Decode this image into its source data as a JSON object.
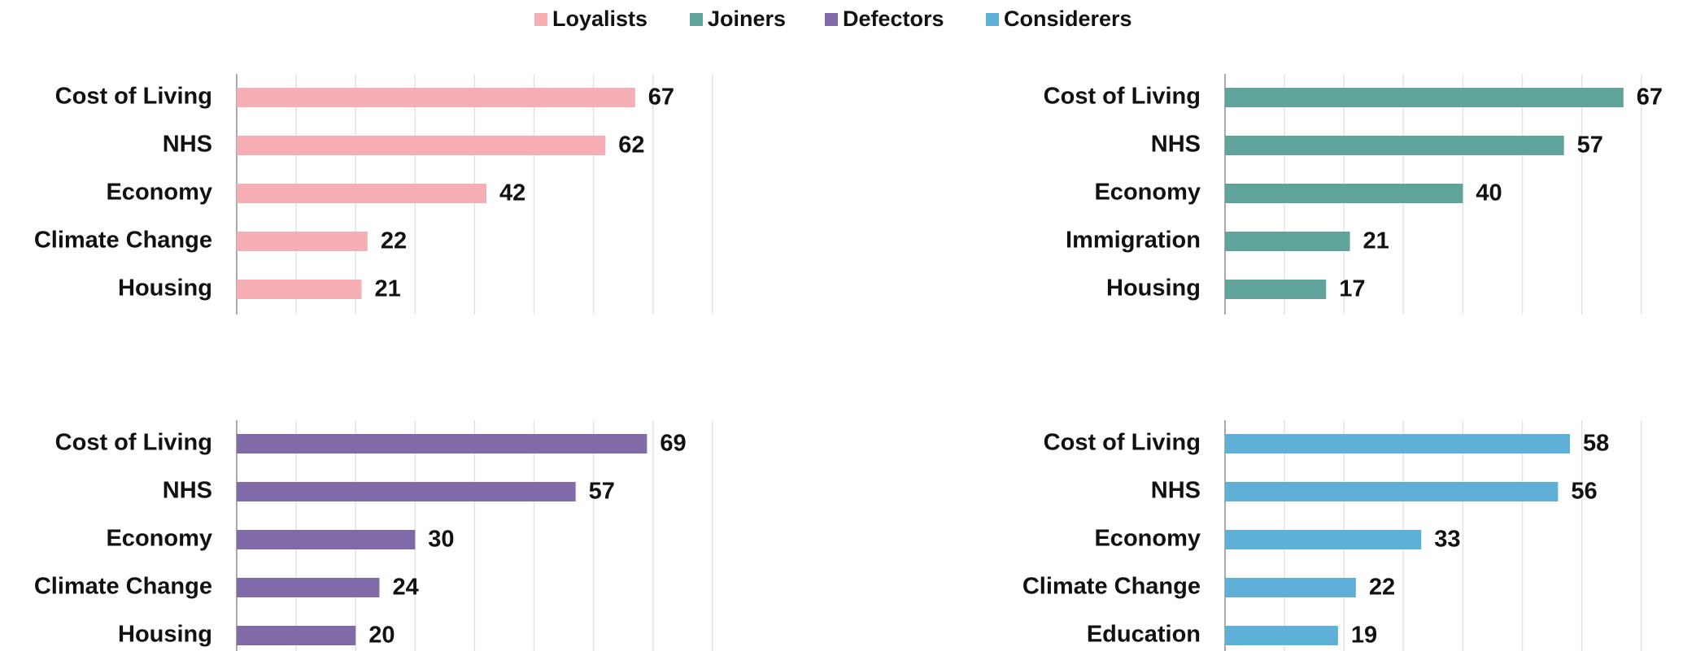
{
  "chart_data": [
    {
      "type": "bar",
      "orientation": "horizontal",
      "categories": [
        "Cost of Living",
        "NHS",
        "Economy",
        "Climate Change",
        "Housing"
      ],
      "series": [
        {
          "name": "Loyalists",
          "color": "#f4aeb4",
          "values": [
            67,
            62,
            42,
            22,
            21
          ]
        }
      ],
      "xlim": [
        0,
        80
      ],
      "xticks": [
        0,
        10,
        20,
        30,
        40,
        50,
        60,
        70,
        80
      ],
      "grid": true
    },
    {
      "type": "bar",
      "orientation": "horizontal",
      "categories": [
        "Cost of Living",
        "NHS",
        "Economy",
        "Immigration",
        "Housing"
      ],
      "series": [
        {
          "name": "Joiners",
          "color": "#5fa39a",
          "values": [
            67,
            57,
            40,
            21,
            17
          ]
        }
      ],
      "xlim": [
        0,
        70
      ],
      "xticks": [
        0,
        10,
        20,
        30,
        40,
        50,
        60,
        70
      ],
      "grid": true
    },
    {
      "type": "bar",
      "orientation": "horizontal",
      "categories": [
        "Cost of Living",
        "NHS",
        "Economy",
        "Climate Change",
        "Housing"
      ],
      "series": [
        {
          "name": "Defectors",
          "color": "#806aa8",
          "values": [
            69,
            57,
            30,
            24,
            20
          ]
        }
      ],
      "xlim": [
        0,
        80
      ],
      "xticks": [
        0,
        10,
        20,
        30,
        40,
        50,
        60,
        70,
        80
      ],
      "grid": true
    },
    {
      "type": "bar",
      "orientation": "horizontal",
      "categories": [
        "Cost of Living",
        "NHS",
        "Economy",
        "Climate Change",
        "Education"
      ],
      "series": [
        {
          "name": "Considerers",
          "color": "#5eb0d6",
          "values": [
            58,
            56,
            33,
            22,
            19
          ]
        }
      ],
      "xlim": [
        0,
        70
      ],
      "xticks": [
        0,
        10,
        20,
        30,
        40,
        50,
        60,
        70
      ],
      "grid": true
    }
  ]
}
